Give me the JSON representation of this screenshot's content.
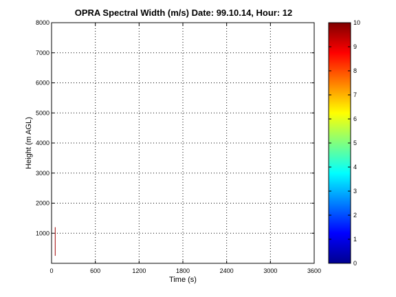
{
  "chart_data": {
    "type": "line",
    "title": "OPRA Spectral Width (m/s)  Date: 99.10.14, Hour: 12",
    "xlabel": "Time (s)",
    "ylabel": "Height (m AGL)",
    "xlim": [
      0,
      3600
    ],
    "ylim": [
      0,
      8000
    ],
    "x_ticks": [
      0,
      600,
      1200,
      1800,
      2400,
      3000,
      3600
    ],
    "y_ticks": [
      1000,
      2000,
      3000,
      4000,
      5000,
      6000,
      7000,
      8000
    ],
    "grid": true,
    "series": [
      {
        "x": [
          50,
          50
        ],
        "y": [
          250,
          1200
        ],
        "color": "#a00000",
        "value": 10
      }
    ],
    "colorbar": {
      "min": 0,
      "max": 10,
      "ticks": [
        0,
        1,
        2,
        3,
        4,
        5,
        6,
        7,
        8,
        9,
        10
      ],
      "colormap": "jet"
    }
  }
}
